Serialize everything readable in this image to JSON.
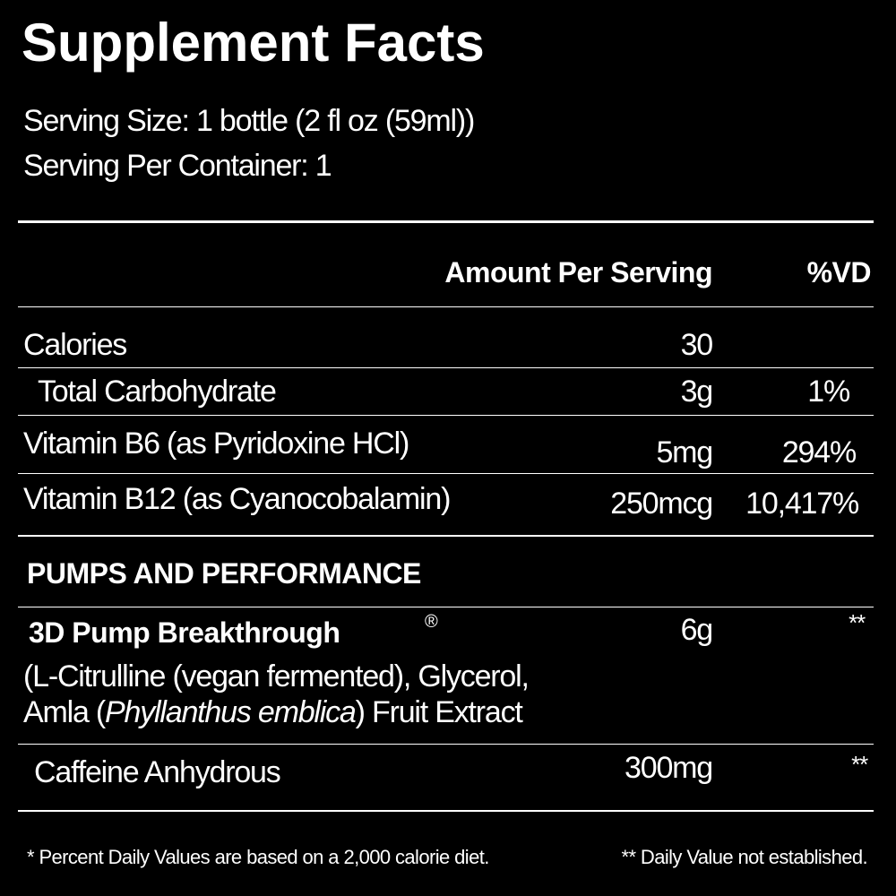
{
  "title": "Supplement Facts",
  "serving": {
    "size": "Serving Size: 1 bottle (2 fl oz (59ml))",
    "per_container": "Serving Per Container: 1"
  },
  "header": {
    "amount": "Amount Per Serving",
    "dv": "%VD"
  },
  "rows": [
    {
      "name": "Calories",
      "amount": "30"
    },
    {
      "name": "Total Carbohydrate",
      "amount": "3g",
      "dv": "1%"
    },
    {
      "name": "Vitamin B6 (as Pyridoxine HCl)",
      "amount": "5mg",
      "dv": "294%"
    },
    {
      "name": "Vitamin B12 (as Cyanocobalamin)",
      "amount": "250mcg",
      "dv": "10,417%"
    }
  ],
  "section": "PUMPS AND PERFORMANCE",
  "blend": {
    "name": "3D Pump Breakthrough",
    "mark": "®",
    "amount": "6g",
    "dv": "**",
    "line1": "(L-Citrulline (vegan fermented), Glycerol,",
    "line2": [
      "Amla (",
      "Phyllanthus emblica",
      ") Fruit Extract"
    ]
  },
  "caffeine": {
    "name": "Caffeine Anhydrous",
    "amount": "300mg",
    "dv": "**"
  },
  "footnotes": [
    "* Percent Daily Values are based on a 2,000 calorie diet.",
    "** Daily Value not established."
  ]
}
